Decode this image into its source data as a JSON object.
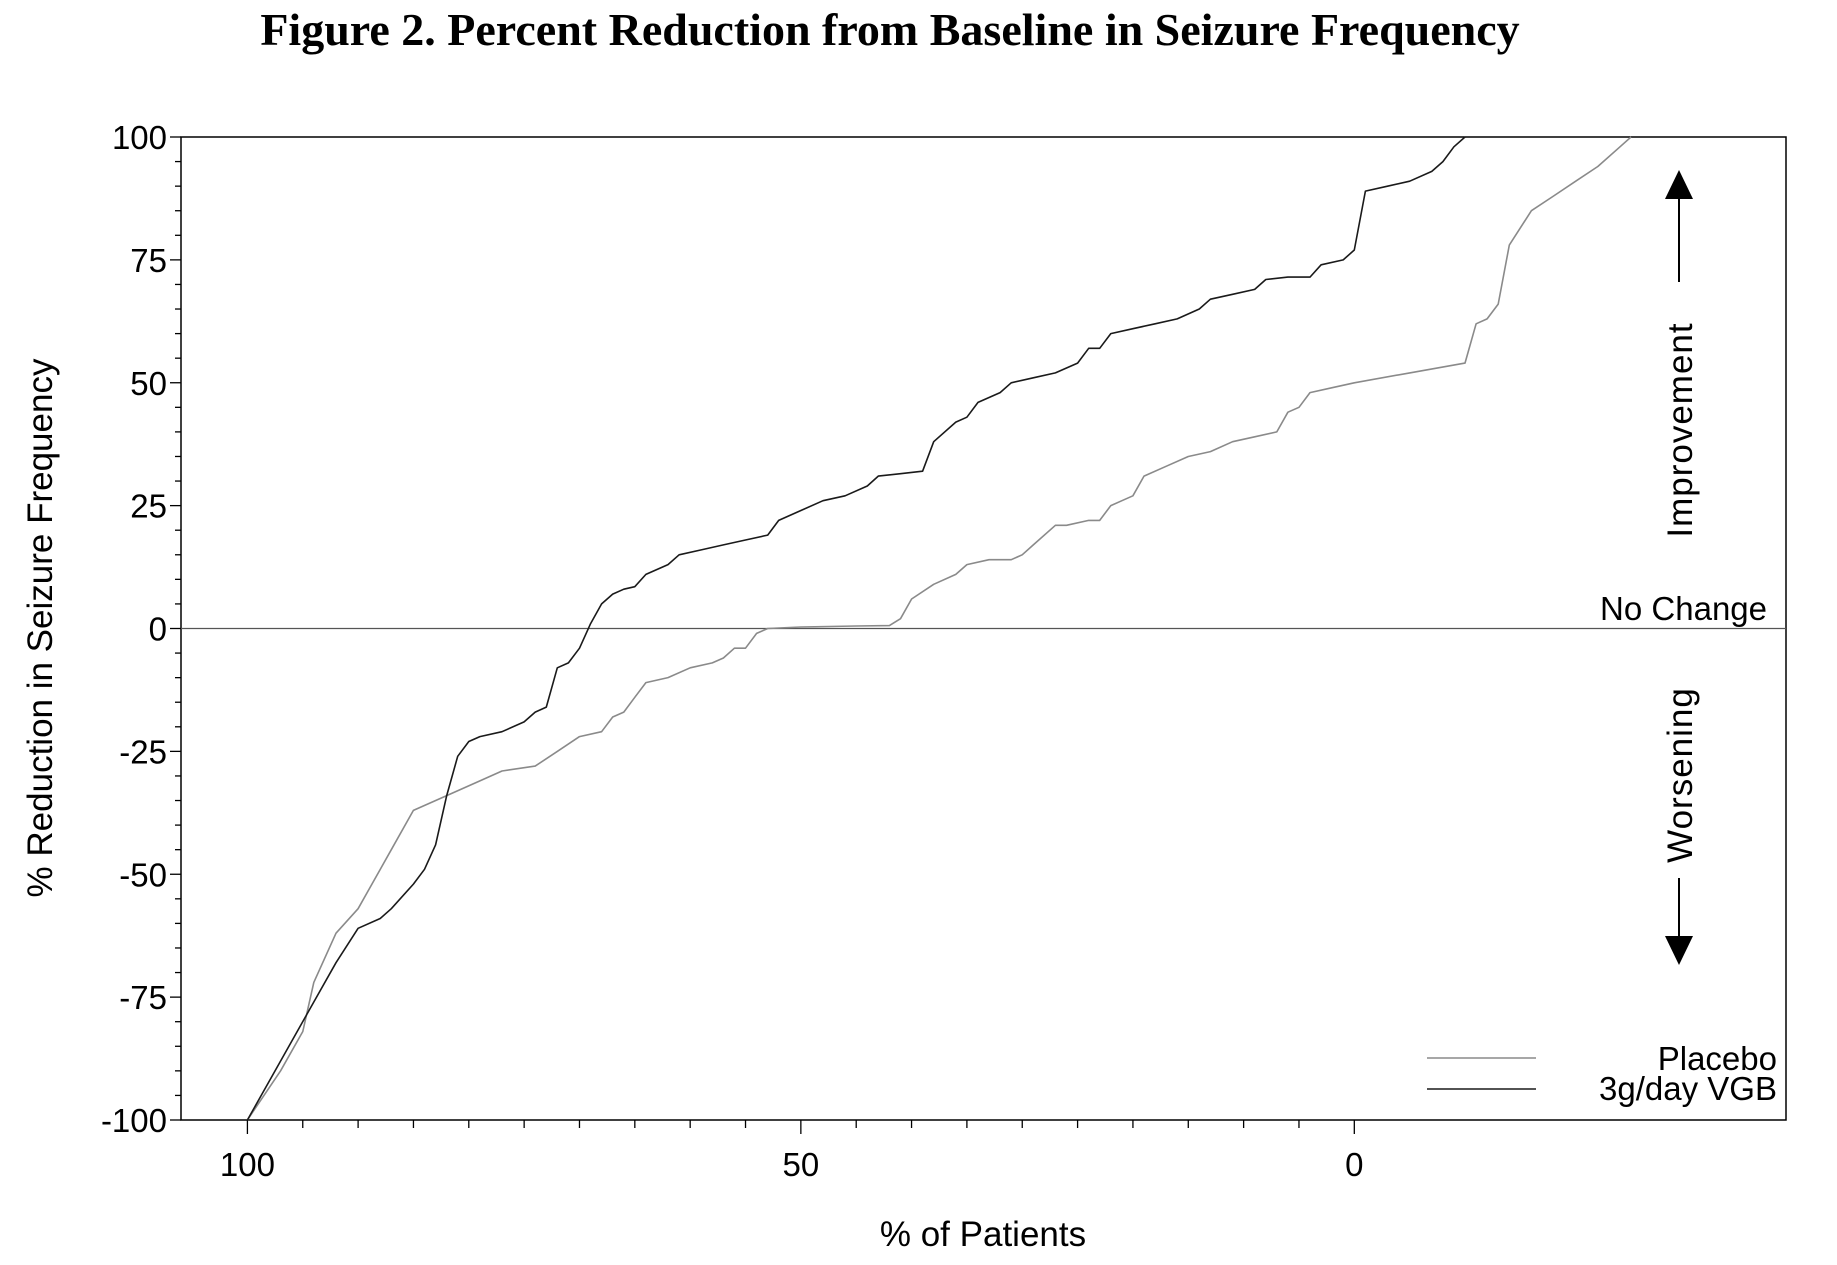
{
  "title": "Figure 2. Percent Reduction from Baseline in Seizure Frequency",
  "chart_data": {
    "type": "line",
    "xlabel": "% of Patients",
    "ylabel": "% Reduction in Seizure Frequency",
    "xlim": [
      106,
      -39
    ],
    "ylim": [
      -100,
      100
    ],
    "x_reversed": true,
    "x_ticks": [
      100,
      50,
      0
    ],
    "x_tick_labels": [
      "100",
      "50",
      "0"
    ],
    "y_ticks": [
      100,
      75,
      50,
      25,
      0,
      -25,
      -50,
      -75,
      -100
    ],
    "y_tick_labels": [
      "100",
      "75",
      "50",
      "25",
      "0",
      "-25",
      "-50",
      "-75",
      "-100"
    ],
    "reference_line": {
      "y": 0,
      "label": "No Change"
    },
    "annotations": {
      "up": "Improvement",
      "down": "Worsening"
    },
    "legend_position": "bottom-right",
    "grid": false,
    "series": [
      {
        "name": "Placebo",
        "color": "#8a8a8a",
        "points": [
          [
            100,
            -100
          ],
          [
            97,
            -90
          ],
          [
            95,
            -82
          ],
          [
            94,
            -72
          ],
          [
            92,
            -62
          ],
          [
            90,
            -57
          ],
          [
            87,
            -45
          ],
          [
            85,
            -37
          ],
          [
            82,
            -34
          ],
          [
            79,
            -31
          ],
          [
            77,
            -29
          ],
          [
            74,
            -28
          ],
          [
            72,
            -25
          ],
          [
            70,
            -22
          ],
          [
            68,
            -21
          ],
          [
            67,
            -18
          ],
          [
            66,
            -17
          ],
          [
            65,
            -14
          ],
          [
            64,
            -11
          ],
          [
            62,
            -10
          ],
          [
            60,
            -8
          ],
          [
            58,
            -7
          ],
          [
            57,
            -6
          ],
          [
            56,
            -4
          ],
          [
            55,
            -4
          ],
          [
            54,
            -1
          ],
          [
            53,
            0
          ],
          [
            50,
            0.3
          ],
          [
            45,
            0.5
          ],
          [
            42,
            0.6
          ],
          [
            41,
            2
          ],
          [
            40,
            6
          ],
          [
            38,
            9
          ],
          [
            36,
            11
          ],
          [
            35,
            13
          ],
          [
            33,
            14
          ],
          [
            31,
            14
          ],
          [
            30,
            15
          ],
          [
            29,
            17
          ],
          [
            27,
            21
          ],
          [
            26,
            21
          ],
          [
            24,
            22
          ],
          [
            23,
            22
          ],
          [
            22,
            25
          ],
          [
            21,
            26
          ],
          [
            20,
            27
          ],
          [
            19,
            31
          ],
          [
            17,
            33
          ],
          [
            15,
            35
          ],
          [
            13,
            36
          ],
          [
            11,
            38
          ],
          [
            9,
            39
          ],
          [
            7,
            40
          ],
          [
            6,
            44
          ],
          [
            5,
            45
          ],
          [
            4,
            48
          ],
          [
            2,
            49
          ],
          [
            0,
            50
          ],
          [
            -5,
            52
          ],
          [
            -10,
            54
          ],
          [
            -11,
            62
          ],
          [
            -12,
            63
          ],
          [
            -13,
            66
          ],
          [
            -14,
            78
          ],
          [
            -16,
            85
          ],
          [
            -18,
            88
          ],
          [
            -20,
            91
          ],
          [
            -22,
            94
          ],
          [
            -24,
            98
          ],
          [
            -25,
            100
          ]
        ]
      },
      {
        "name": "3g/day VGB",
        "color": "#1a1a1a",
        "points": [
          [
            100,
            -100
          ],
          [
            97,
            -88
          ],
          [
            94,
            -76
          ],
          [
            92,
            -68
          ],
          [
            90,
            -61
          ],
          [
            88,
            -59
          ],
          [
            87,
            -57
          ],
          [
            85,
            -52
          ],
          [
            84,
            -49
          ],
          [
            83,
            -44
          ],
          [
            82,
            -34
          ],
          [
            81,
            -26
          ],
          [
            80,
            -23
          ],
          [
            79,
            -22
          ],
          [
            77,
            -21
          ],
          [
            75,
            -19
          ],
          [
            74,
            -17
          ],
          [
            73,
            -16
          ],
          [
            72,
            -8
          ],
          [
            71,
            -7
          ],
          [
            70,
            -4
          ],
          [
            69,
            1
          ],
          [
            68,
            5
          ],
          [
            67,
            7
          ],
          [
            66,
            8
          ],
          [
            65,
            8.5
          ],
          [
            64,
            11
          ],
          [
            62,
            13
          ],
          [
            61,
            15
          ],
          [
            59,
            16
          ],
          [
            57,
            17
          ],
          [
            55,
            18
          ],
          [
            53,
            19
          ],
          [
            52,
            22
          ],
          [
            50,
            24
          ],
          [
            48,
            26
          ],
          [
            46,
            27
          ],
          [
            44,
            29
          ],
          [
            43,
            31
          ],
          [
            41,
            31.5
          ],
          [
            39,
            32
          ],
          [
            38,
            38
          ],
          [
            36,
            42
          ],
          [
            35,
            43
          ],
          [
            34,
            46
          ],
          [
            32,
            48
          ],
          [
            31,
            50
          ],
          [
            29,
            51
          ],
          [
            27,
            52
          ],
          [
            25,
            54
          ],
          [
            24,
            57
          ],
          [
            23,
            57
          ],
          [
            22,
            60
          ],
          [
            20,
            61
          ],
          [
            18,
            62
          ],
          [
            16,
            63
          ],
          [
            14,
            65
          ],
          [
            13,
            67
          ],
          [
            11,
            68
          ],
          [
            9,
            69
          ],
          [
            8,
            71
          ],
          [
            6,
            71.5
          ],
          [
            4,
            71.5
          ],
          [
            3,
            74
          ],
          [
            1,
            75
          ],
          [
            0,
            77
          ],
          [
            -1,
            89
          ],
          [
            -3,
            90
          ],
          [
            -5,
            91
          ],
          [
            -7,
            93
          ],
          [
            -8,
            95
          ],
          [
            -9,
            98
          ],
          [
            -10,
            100
          ]
        ]
      }
    ]
  }
}
